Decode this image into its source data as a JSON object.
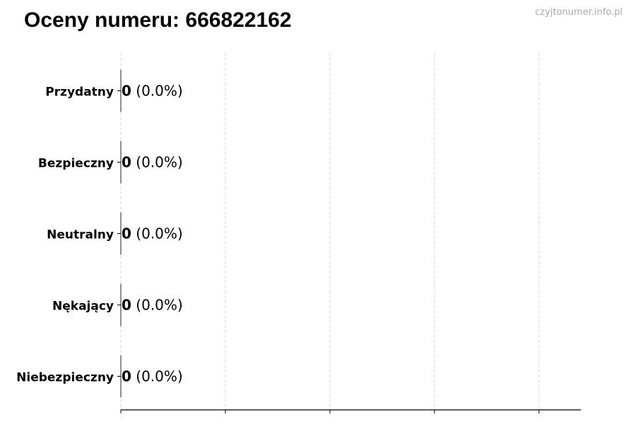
{
  "title": "Oceny numeru: 666822162",
  "watermark": "czyjtonumer.info.pl",
  "chart_data": {
    "type": "bar",
    "orientation": "horizontal",
    "title": "Oceny numeru: 666822162",
    "categories": [
      "Przydatny",
      "Bezpieczny",
      "Neutralny",
      "Nękający",
      "Niebezpieczny"
    ],
    "values": [
      0,
      0,
      0,
      0,
      0
    ],
    "percents": [
      "0.0%",
      "0.0%",
      "0.0%",
      "0.0%",
      "0.0%"
    ],
    "xlim": [
      0,
      4.4
    ],
    "xticks": [
      0,
      1,
      2,
      3,
      4
    ],
    "xtick_labels": [
      "",
      "",
      "",
      "",
      ""
    ],
    "grid": "x dashed",
    "bar_color": "#222222",
    "grid_color": "#cccccc"
  }
}
